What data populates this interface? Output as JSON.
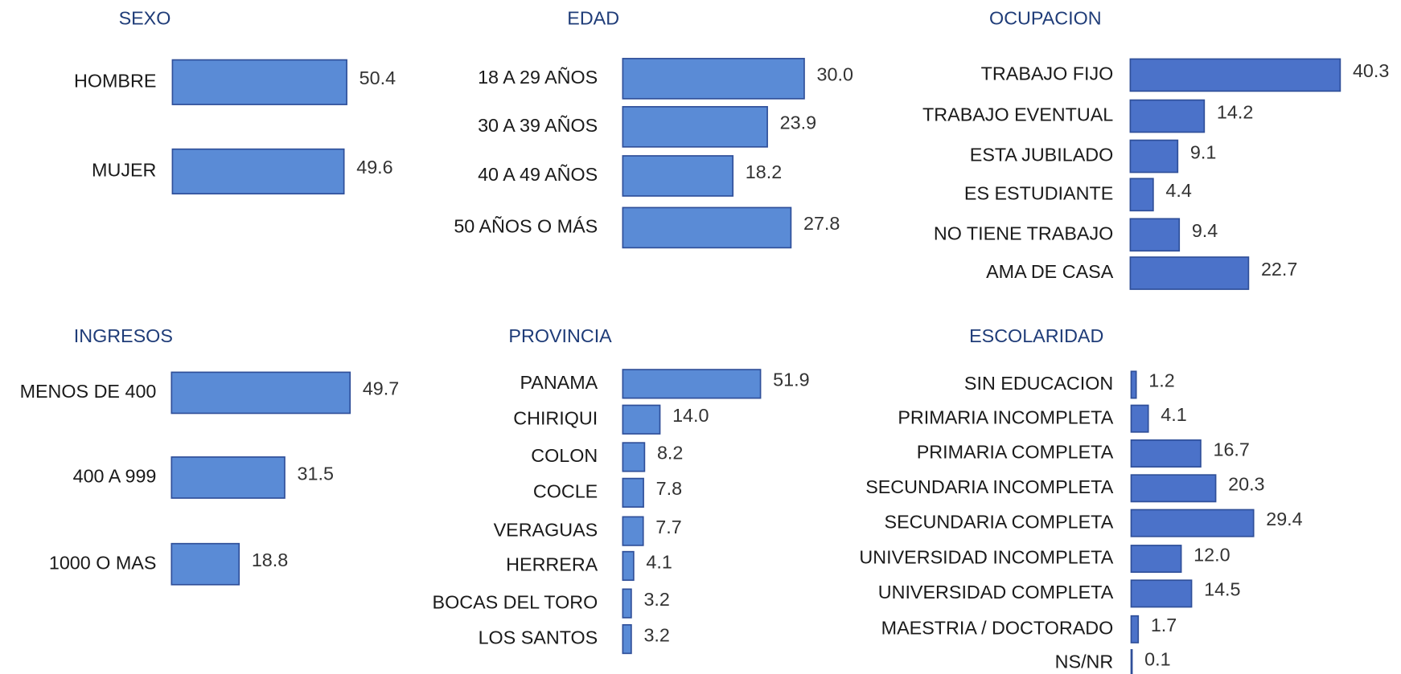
{
  "chart_data": [
    {
      "type": "bar",
      "title": "SEXO",
      "color": "#5a8bd6",
      "categories": [
        "HOMBRE",
        "MUJER"
      ],
      "values": [
        50.4,
        49.6
      ],
      "value_labels": [
        "50.4",
        "49.6"
      ]
    },
    {
      "type": "bar",
      "title": "EDAD",
      "color": "#5a8bd6",
      "categories": [
        "18 A 29 AÑOS",
        "30 A 39 AÑOS",
        "40 A 49 AÑOS",
        "50 AÑOS O MÁS"
      ],
      "values": [
        30.0,
        23.9,
        18.2,
        27.8
      ],
      "value_labels": [
        "30.0",
        "23.9",
        "18.2",
        "27.8"
      ]
    },
    {
      "type": "bar",
      "title": "OCUPACION",
      "color": "#4b72c9",
      "categories": [
        "TRABAJO FIJO",
        "TRABAJO EVENTUAL",
        "ESTA JUBILADO",
        "ES ESTUDIANTE",
        "NO TIENE  TRABAJO",
        "AMA DE CASA"
      ],
      "values": [
        40.3,
        14.2,
        9.1,
        4.4,
        9.4,
        22.7
      ],
      "value_labels": [
        "40.3",
        "14.2",
        "9.1",
        "4.4",
        "9.4",
        "22.7"
      ]
    },
    {
      "type": "bar",
      "title": "INGRESOS",
      "color": "#5a8bd6",
      "categories": [
        "MENOS DE 400",
        "400 A 999",
        "1000 O MAS"
      ],
      "values": [
        49.7,
        31.5,
        18.8
      ],
      "value_labels": [
        "49.7",
        "31.5",
        "18.8"
      ]
    },
    {
      "type": "bar",
      "title": "PROVINCIA",
      "color": "#5a8bd6",
      "categories": [
        "PANAMA",
        "CHIRIQUI",
        "COLON",
        "COCLE",
        "VERAGUAS",
        "HERRERA",
        "BOCAS DEL TORO",
        "LOS SANTOS"
      ],
      "values": [
        51.9,
        14.0,
        8.2,
        7.8,
        7.7,
        4.1,
        3.2,
        3.2
      ],
      "value_labels": [
        "51.9",
        "14.0",
        "8.2",
        "7.8",
        "7.7",
        "4.1",
        "3.2",
        "3.2"
      ]
    },
    {
      "type": "bar",
      "title": "ESCOLARIDAD",
      "color": "#4b72c9",
      "categories": [
        "SIN EDUCACION",
        "PRIMARIA INCOMPLETA",
        "PRIMARIA COMPLETA",
        "SECUNDARIA INCOMPLETA",
        "SECUNDARIA COMPLETA",
        "UNIVERSIDAD  INCOMPLETA",
        "UNIVERSIDAD  COMPLETA",
        "MAESTRIA / DOCTORADO",
        "NS/NR"
      ],
      "values": [
        1.2,
        4.1,
        16.7,
        20.3,
        29.4,
        12.0,
        14.5,
        1.7,
        0.1
      ],
      "value_labels": [
        "1.2",
        "4.1",
        "16.7",
        "20.3",
        "29.4",
        "12.0",
        "14.5",
        "1.7",
        "0.1"
      ]
    }
  ]
}
